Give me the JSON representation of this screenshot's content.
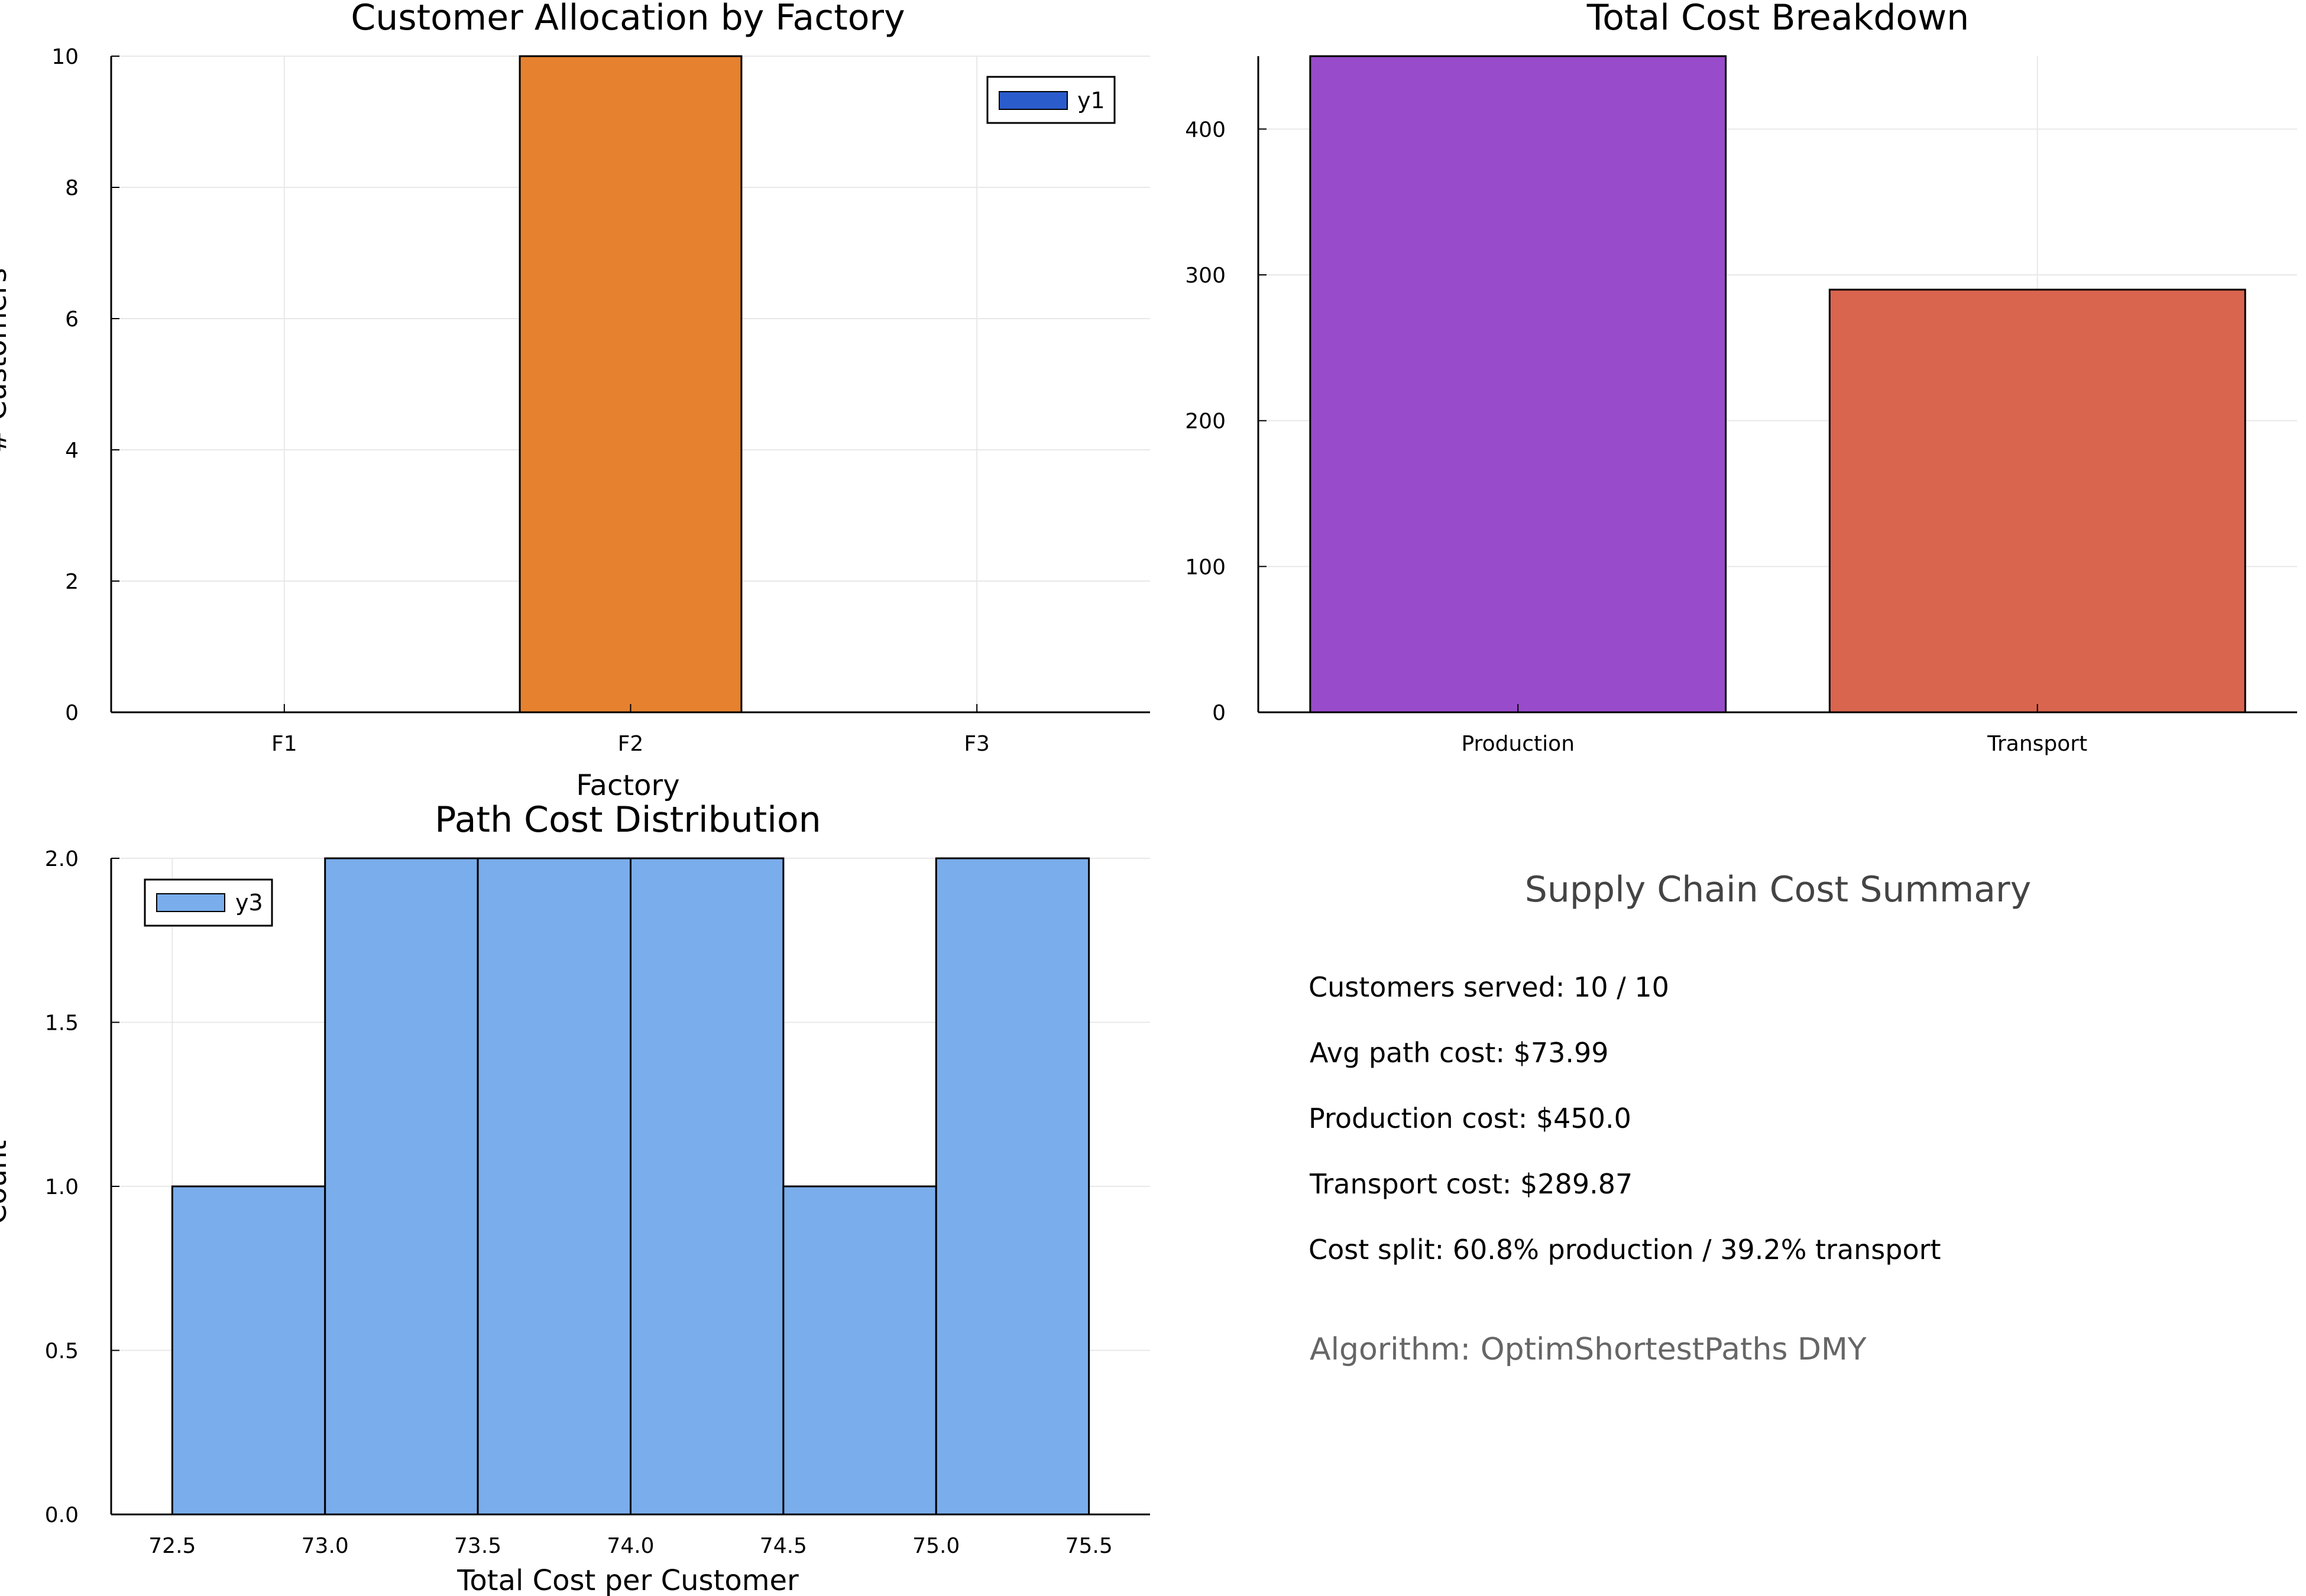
{
  "chart_data": [
    {
      "type": "bar",
      "title": "Customer Allocation by Factory",
      "xlabel": "Factory",
      "ylabel": "# Customers",
      "categories": [
        "F1",
        "F2",
        "F3"
      ],
      "values": [
        0,
        10,
        0
      ],
      "colors": [
        "#2b5ccc",
        "#e6822f",
        "#2b5ccc"
      ],
      "ylim": [
        0,
        10
      ],
      "yticks": [
        "0",
        "2",
        "4",
        "6",
        "8",
        "10"
      ],
      "grid": true,
      "legend": {
        "position": "top-right",
        "entries": [
          {
            "label": "y1",
            "color": "#2b5ccc"
          }
        ]
      }
    },
    {
      "type": "bar",
      "title": "Total Cost Breakdown",
      "xlabel": "",
      "ylabel": "",
      "categories": [
        "Production",
        "Transport"
      ],
      "values": [
        450.0,
        289.87
      ],
      "colors": [
        "#984ccb",
        "#da654f"
      ],
      "ylim": [
        0,
        450
      ],
      "yticks": [
        "0",
        "100",
        "200",
        "300",
        "400"
      ],
      "grid": true
    },
    {
      "type": "histogram",
      "title": "Path Cost Distribution",
      "xlabel": "Total Cost per Customer",
      "ylabel": "Count",
      "bin_edges": [
        72.5,
        73.0,
        73.5,
        74.0,
        74.5,
        75.0,
        75.5
      ],
      "counts": [
        1,
        2,
        2,
        2,
        1,
        2
      ],
      "color": "#7aadeb",
      "xlim": [
        72.3,
        75.7
      ],
      "ylim": [
        0,
        2
      ],
      "xticks": [
        "72.5",
        "73.0",
        "73.5",
        "74.0",
        "74.5",
        "75.0",
        "75.5"
      ],
      "yticks": [
        "0.0",
        "0.5",
        "1.0",
        "1.5",
        "2.0"
      ],
      "grid": true,
      "legend": {
        "position": "top-left",
        "entries": [
          {
            "label": "y3",
            "color": "#7aadeb"
          }
        ]
      }
    }
  ],
  "summary": {
    "title": "Supply Chain Cost Summary",
    "lines": [
      "Customers served: 10 / 10",
      "Avg path cost: $73.99",
      "Production cost: $450.0",
      "Transport cost: $289.87",
      "Cost split: 60.8% production / 39.2% transport"
    ],
    "algorithm": "Algorithm: OptimShortestPaths DMY"
  }
}
